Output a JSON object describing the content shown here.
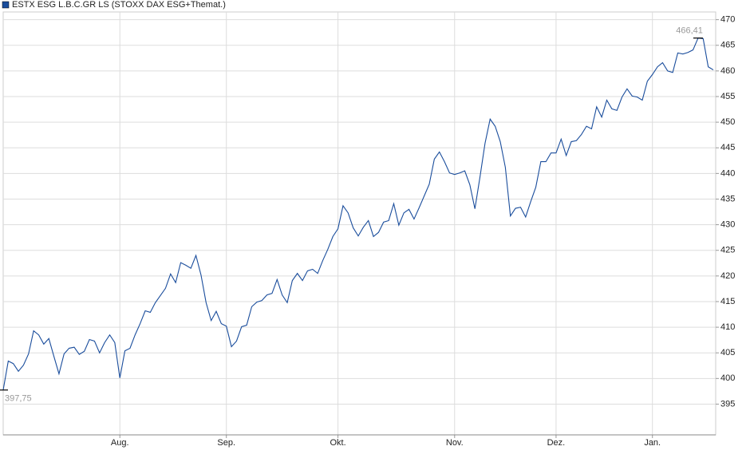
{
  "chart_data": {
    "type": "line",
    "categories": [
      null,
      null,
      null,
      null,
      null,
      null,
      null,
      null,
      null,
      null,
      null,
      null,
      null,
      null,
      null,
      null,
      null,
      null,
      null,
      null,
      null,
      null,
      null,
      "Aug.",
      null,
      null,
      null,
      null,
      null,
      null,
      null,
      null,
      null,
      null,
      null,
      null,
      null,
      null,
      null,
      null,
      null,
      null,
      null,
      null,
      "Sep.",
      null,
      null,
      null,
      null,
      null,
      null,
      null,
      null,
      null,
      null,
      null,
      null,
      null,
      null,
      null,
      null,
      null,
      null,
      null,
      null,
      null,
      "Okt.",
      null,
      null,
      null,
      null,
      null,
      null,
      null,
      null,
      null,
      null,
      null,
      null,
      null,
      null,
      null,
      null,
      null,
      null,
      null,
      null,
      null,
      null,
      "Nov.",
      null,
      null,
      null,
      null,
      null,
      null,
      null,
      null,
      null,
      null,
      null,
      null,
      null,
      null,
      null,
      null,
      null,
      null,
      null,
      "Dez.",
      null,
      null,
      null,
      null,
      null,
      null,
      null,
      null,
      null,
      null,
      null,
      null,
      null,
      null,
      null,
      null,
      null,
      null,
      "Jan.",
      null,
      null,
      null,
      null,
      null,
      null,
      null,
      null,
      null,
      null,
      null,
      null
    ],
    "series": [
      {
        "name": "ESTX ESG L.B.C.GR LS (STOXX DAX ESG+Themat.)",
        "color": "#1a4d9c",
        "values": [
          397.75,
          403.4,
          402.9,
          401.4,
          402.6,
          404.8,
          409.3,
          408.5,
          406.7,
          407.8,
          404.3,
          400.9,
          404.8,
          405.9,
          406.1,
          404.7,
          405.3,
          407.6,
          407.3,
          405.0,
          407.0,
          408.5,
          407.0,
          400.1,
          405.4,
          405.9,
          408.5,
          410.7,
          413.2,
          412.9,
          414.8,
          416.2,
          417.6,
          420.4,
          418.7,
          422.6,
          422.1,
          421.5,
          424.0,
          420.2,
          414.8,
          411.3,
          413.1,
          410.7,
          410.2,
          406.2,
          407.3,
          410.1,
          410.4,
          414.0,
          414.9,
          415.2,
          416.3,
          416.6,
          419.3,
          416.3,
          414.8,
          419.1,
          420.5,
          419.1,
          421.0,
          421.3,
          420.5,
          423.0,
          425.2,
          427.7,
          429.2,
          433.7,
          432.3,
          429.4,
          427.8,
          429.5,
          430.8,
          427.7,
          428.5,
          430.5,
          430.8,
          434.1,
          429.9,
          432.3,
          433.0,
          431.1,
          433.3,
          435.6,
          437.9,
          442.8,
          444.2,
          442.3,
          440.1,
          439.8,
          440.1,
          440.5,
          437.8,
          433.1,
          439.3,
          445.9,
          450.6,
          449.2,
          446.2,
          441.2,
          431.7,
          433.2,
          433.4,
          431.5,
          434.5,
          437.3,
          442.3,
          442.3,
          444.0,
          444.0,
          446.7,
          443.5,
          446.2,
          446.4,
          447.6,
          449.2,
          448.7,
          453.0,
          451.0,
          454.3,
          452.6,
          452.3,
          454.9,
          456.5,
          455.1,
          454.9,
          454.3,
          458.0,
          459.3,
          460.8,
          461.6,
          460.0,
          459.7,
          463.5,
          463.3,
          463.6,
          464.1,
          466.41,
          466.3,
          460.8,
          460.2
        ],
        "value_labels": [
          "397,75",
          null,
          null,
          null,
          null,
          null,
          null,
          null,
          null,
          null,
          null,
          null,
          null,
          null,
          null,
          null,
          null,
          null,
          null,
          null,
          null,
          null,
          null,
          null,
          null,
          null,
          null,
          null,
          null,
          null,
          null,
          null,
          null,
          null,
          null,
          null,
          null,
          null,
          null,
          null,
          null,
          null,
          null,
          null,
          null,
          null,
          null,
          null,
          null,
          null,
          null,
          null,
          null,
          null,
          null,
          null,
          null,
          null,
          null,
          null,
          null,
          null,
          null,
          null,
          null,
          null,
          null,
          null,
          null,
          null,
          null,
          null,
          null,
          null,
          null,
          null,
          null,
          null,
          null,
          null,
          null,
          null,
          null,
          null,
          null,
          null,
          null,
          null,
          null,
          null,
          null,
          null,
          null,
          null,
          null,
          null,
          null,
          null,
          null,
          null,
          null,
          null,
          null,
          null,
          null,
          null,
          null,
          null,
          null,
          null,
          null,
          null,
          null,
          null,
          null,
          null,
          null,
          null,
          null,
          null,
          null,
          null,
          null,
          null,
          null,
          null,
          null,
          null,
          null,
          null,
          null,
          null,
          null,
          null,
          null,
          null,
          null,
          "466,41",
          null,
          null,
          null
        ]
      }
    ],
    "ylim": [
      389,
      471.5
    ],
    "yticks": [
      395,
      400,
      405,
      410,
      415,
      420,
      425,
      430,
      435,
      440,
      445,
      450,
      455,
      460,
      465,
      470
    ],
    "grid": true,
    "legend": "top-left"
  }
}
